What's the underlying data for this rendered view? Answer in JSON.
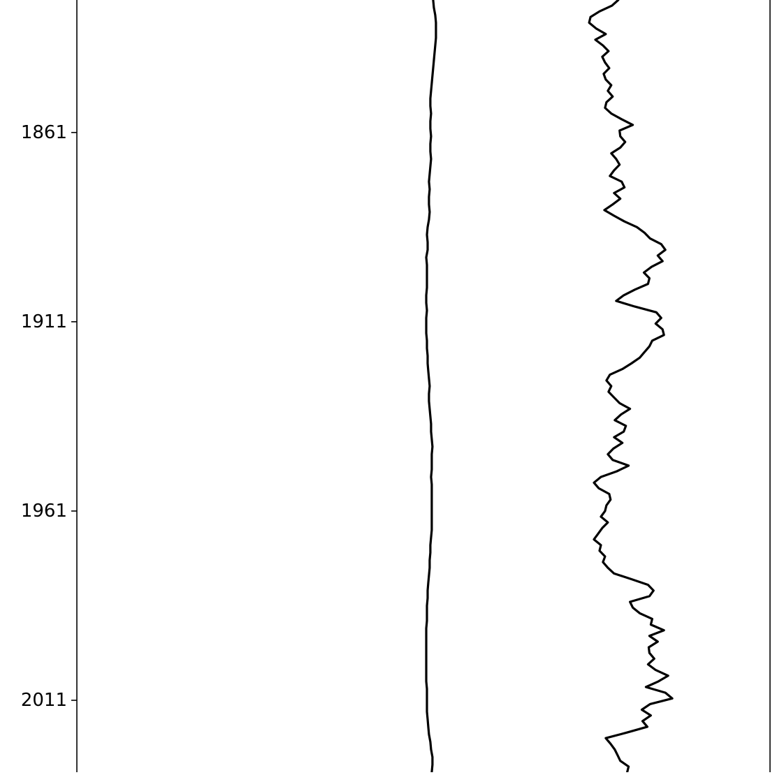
{
  "chart_data": {
    "type": "line",
    "orientation": "vertical-depth",
    "title": "",
    "xlabel": "",
    "ylabel": "",
    "y_axis": {
      "tick_labels": [
        "1861",
        "1911",
        "1961",
        "2011"
      ],
      "tick_values": [
        1861,
        1911,
        1961,
        2011
      ],
      "inverted": true
    },
    "ylim": [
      1826,
      2030
    ],
    "xlim": [
      0,
      100
    ],
    "grid": false,
    "legend": "none",
    "line_color": "#000000",
    "series": [
      {
        "points": [
          [
            51.4,
            1826.0
          ],
          [
            51.5,
            1828.0
          ],
          [
            51.7,
            1830.0
          ],
          [
            51.8,
            1832.0
          ],
          [
            51.8,
            1834.0
          ],
          [
            51.8,
            1836.0
          ],
          [
            51.7,
            1838.0
          ],
          [
            51.6,
            1840.0
          ],
          [
            51.5,
            1842.0
          ],
          [
            51.4,
            1844.0
          ],
          [
            51.3,
            1846.0
          ],
          [
            51.2,
            1848.0
          ],
          [
            51.1,
            1850.0
          ],
          [
            51.0,
            1852.0
          ],
          [
            51.0,
            1854.0
          ],
          [
            51.1,
            1856.0
          ],
          [
            51.0,
            1858.0
          ],
          [
            51.0,
            1860.0
          ],
          [
            51.1,
            1862.0
          ],
          [
            51.0,
            1864.0
          ],
          [
            51.0,
            1866.0
          ],
          [
            51.1,
            1868.0
          ],
          [
            51.0,
            1870.0
          ],
          [
            50.9,
            1872.0
          ],
          [
            50.8,
            1874.0
          ],
          [
            50.9,
            1876.0
          ],
          [
            50.8,
            1878.0
          ],
          [
            50.8,
            1880.0
          ],
          [
            50.9,
            1882.0
          ],
          [
            50.8,
            1884.0
          ],
          [
            50.6,
            1886.0
          ],
          [
            50.5,
            1888.0
          ],
          [
            50.6,
            1890.0
          ],
          [
            50.6,
            1892.0
          ],
          [
            50.4,
            1894.0
          ],
          [
            50.5,
            1896.0
          ],
          [
            50.5,
            1898.0
          ],
          [
            50.5,
            1900.0
          ],
          [
            50.5,
            1902.0
          ],
          [
            50.4,
            1904.0
          ],
          [
            50.4,
            1906.0
          ],
          [
            50.5,
            1908.0
          ],
          [
            50.4,
            1910.0
          ],
          [
            50.4,
            1912.0
          ],
          [
            50.4,
            1914.0
          ],
          [
            50.5,
            1916.0
          ],
          [
            50.5,
            1918.0
          ],
          [
            50.6,
            1920.0
          ],
          [
            50.6,
            1922.0
          ],
          [
            50.7,
            1924.0
          ],
          [
            50.8,
            1926.0
          ],
          [
            50.9,
            1928.0
          ],
          [
            50.8,
            1930.0
          ],
          [
            50.8,
            1932.0
          ],
          [
            50.9,
            1934.0
          ],
          [
            51.0,
            1936.0
          ],
          [
            51.1,
            1938.0
          ],
          [
            51.1,
            1940.0
          ],
          [
            51.2,
            1942.0
          ],
          [
            51.3,
            1944.0
          ],
          [
            51.2,
            1946.0
          ],
          [
            51.2,
            1948.0
          ],
          [
            51.2,
            1950.0
          ],
          [
            51.1,
            1952.0
          ],
          [
            51.2,
            1954.0
          ],
          [
            51.2,
            1956.0
          ],
          [
            51.2,
            1958.0
          ],
          [
            51.2,
            1960.0
          ],
          [
            51.2,
            1962.0
          ],
          [
            51.2,
            1964.0
          ],
          [
            51.2,
            1966.0
          ],
          [
            51.1,
            1968.0
          ],
          [
            51.0,
            1970.0
          ],
          [
            51.0,
            1972.0
          ],
          [
            50.9,
            1974.0
          ],
          [
            50.9,
            1976.0
          ],
          [
            50.8,
            1978.0
          ],
          [
            50.7,
            1980.0
          ],
          [
            50.6,
            1982.0
          ],
          [
            50.6,
            1984.0
          ],
          [
            50.5,
            1986.0
          ],
          [
            50.5,
            1988.0
          ],
          [
            50.5,
            1990.0
          ],
          [
            50.4,
            1992.0
          ],
          [
            50.4,
            1994.0
          ],
          [
            50.4,
            1996.0
          ],
          [
            50.4,
            1998.0
          ],
          [
            50.4,
            2000.0
          ],
          [
            50.4,
            2002.0
          ],
          [
            50.4,
            2004.0
          ],
          [
            50.4,
            2006.0
          ],
          [
            50.5,
            2008.0
          ],
          [
            50.5,
            2010.0
          ],
          [
            50.5,
            2012.0
          ],
          [
            50.5,
            2014.0
          ],
          [
            50.6,
            2016.0
          ],
          [
            50.7,
            2018.0
          ],
          [
            50.8,
            2020.0
          ],
          [
            51.0,
            2022.0
          ],
          [
            51.1,
            2024.0
          ],
          [
            51.3,
            2026.0
          ],
          [
            51.3,
            2028.0
          ],
          [
            51.2,
            2030.0
          ]
        ]
      },
      {
        "points": [
          [
            78.1,
            1826.0
          ],
          [
            77.2,
            1827.5
          ],
          [
            75.4,
            1829.0
          ],
          [
            74.1,
            1830.5
          ],
          [
            73.9,
            1832.0
          ],
          [
            74.9,
            1833.5
          ],
          [
            76.3,
            1835.0
          ],
          [
            74.8,
            1836.5
          ],
          [
            75.9,
            1838.0
          ],
          [
            76.7,
            1839.5
          ],
          [
            75.8,
            1841.0
          ],
          [
            76.2,
            1842.5
          ],
          [
            76.8,
            1844.0
          ],
          [
            76.0,
            1845.5
          ],
          [
            76.3,
            1847.0
          ],
          [
            77.1,
            1848.5
          ],
          [
            76.6,
            1850.0
          ],
          [
            77.3,
            1851.5
          ],
          [
            76.4,
            1853.0
          ],
          [
            76.2,
            1854.5
          ],
          [
            77.1,
            1856.0
          ],
          [
            78.6,
            1857.5
          ],
          [
            80.2,
            1859.0
          ],
          [
            78.3,
            1860.5
          ],
          [
            78.4,
            1862.0
          ],
          [
            79.1,
            1863.5
          ],
          [
            78.4,
            1865.0
          ],
          [
            77.1,
            1866.5
          ],
          [
            77.8,
            1868.0
          ],
          [
            78.3,
            1869.5
          ],
          [
            77.5,
            1871.0
          ],
          [
            76.9,
            1872.5
          ],
          [
            78.6,
            1874.0
          ],
          [
            79.0,
            1875.5
          ],
          [
            77.5,
            1877.0
          ],
          [
            78.4,
            1878.5
          ],
          [
            77.3,
            1880.0
          ],
          [
            76.1,
            1881.5
          ],
          [
            77.5,
            1883.0
          ],
          [
            79.0,
            1884.5
          ],
          [
            80.8,
            1886.0
          ],
          [
            81.9,
            1887.5
          ],
          [
            82.7,
            1889.0
          ],
          [
            84.3,
            1890.5
          ],
          [
            84.9,
            1892.0
          ],
          [
            83.8,
            1893.5
          ],
          [
            84.5,
            1895.0
          ],
          [
            82.9,
            1896.5
          ],
          [
            81.8,
            1898.0
          ],
          [
            82.6,
            1899.5
          ],
          [
            82.4,
            1901.0
          ],
          [
            80.5,
            1902.5
          ],
          [
            78.9,
            1904.0
          ],
          [
            77.8,
            1905.5
          ],
          [
            80.5,
            1907.0
          ],
          [
            83.6,
            1908.5
          ],
          [
            84.3,
            1910.0
          ],
          [
            83.5,
            1911.5
          ],
          [
            84.5,
            1913.0
          ],
          [
            84.7,
            1914.5
          ],
          [
            83.0,
            1916.0
          ],
          [
            82.6,
            1917.5
          ],
          [
            81.9,
            1919.0
          ],
          [
            81.2,
            1920.5
          ],
          [
            80.0,
            1922.0
          ],
          [
            78.7,
            1923.5
          ],
          [
            76.9,
            1925.0
          ],
          [
            76.4,
            1926.5
          ],
          [
            77.1,
            1928.0
          ],
          [
            76.7,
            1929.5
          ],
          [
            77.5,
            1931.0
          ],
          [
            78.3,
            1932.5
          ],
          [
            79.8,
            1934.0
          ],
          [
            78.5,
            1935.5
          ],
          [
            77.6,
            1937.0
          ],
          [
            79.2,
            1938.5
          ],
          [
            78.9,
            1940.0
          ],
          [
            77.5,
            1941.5
          ],
          [
            78.7,
            1943.0
          ],
          [
            77.4,
            1944.5
          ],
          [
            76.6,
            1946.0
          ],
          [
            77.3,
            1947.5
          ],
          [
            79.6,
            1949.0
          ],
          [
            77.9,
            1950.5
          ],
          [
            75.6,
            1952.0
          ],
          [
            74.6,
            1953.5
          ],
          [
            75.3,
            1955.0
          ],
          [
            76.8,
            1956.5
          ],
          [
            77.0,
            1958.0
          ],
          [
            76.4,
            1959.5
          ],
          [
            76.2,
            1961.0
          ],
          [
            75.6,
            1962.5
          ],
          [
            76.6,
            1964.0
          ],
          [
            75.8,
            1965.5
          ],
          [
            75.2,
            1967.0
          ],
          [
            74.6,
            1968.5
          ],
          [
            75.6,
            1970.0
          ],
          [
            75.4,
            1971.5
          ],
          [
            76.2,
            1973.0
          ],
          [
            75.9,
            1974.5
          ],
          [
            76.6,
            1976.0
          ],
          [
            77.5,
            1977.5
          ],
          [
            80.0,
            1979.0
          ],
          [
            82.4,
            1980.5
          ],
          [
            83.2,
            1982.0
          ],
          [
            82.6,
            1983.5
          ],
          [
            79.8,
            1985.0
          ],
          [
            80.2,
            1986.5
          ],
          [
            81.2,
            1988.0
          ],
          [
            83.0,
            1989.5
          ],
          [
            82.8,
            1991.0
          ],
          [
            84.7,
            1992.5
          ],
          [
            82.6,
            1994.0
          ],
          [
            83.8,
            1995.5
          ],
          [
            82.5,
            1997.0
          ],
          [
            82.6,
            1998.5
          ],
          [
            83.3,
            2000.0
          ],
          [
            82.4,
            2001.5
          ],
          [
            83.5,
            2003.0
          ],
          [
            85.3,
            2004.5
          ],
          [
            83.9,
            2006.0
          ],
          [
            82.1,
            2007.5
          ],
          [
            84.9,
            2009.0
          ],
          [
            85.9,
            2010.5
          ],
          [
            82.7,
            2012.0
          ],
          [
            81.5,
            2013.5
          ],
          [
            82.8,
            2015.0
          ],
          [
            81.6,
            2016.5
          ],
          [
            82.3,
            2018.0
          ],
          [
            79.4,
            2019.5
          ],
          [
            76.3,
            2021.0
          ],
          [
            77.0,
            2022.5
          ],
          [
            77.6,
            2024.0
          ],
          [
            78.0,
            2025.5
          ],
          [
            78.4,
            2027.0
          ],
          [
            79.6,
            2028.5
          ],
          [
            79.4,
            2030.0
          ]
        ]
      }
    ]
  }
}
